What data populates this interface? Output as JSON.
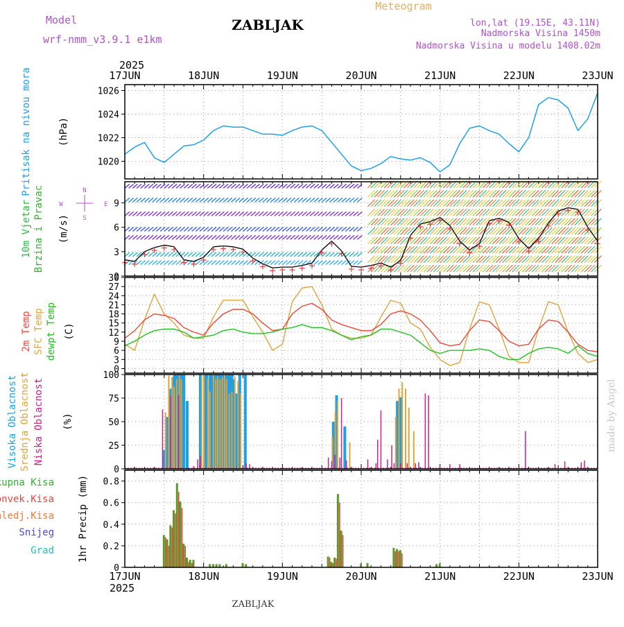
{
  "header": {
    "model_label": "Model",
    "model_name": "wrf-nmm_v3.9.1  e1km",
    "title": "ZABLJAK",
    "meteogram": "Meteogram",
    "lonlat": "lon,lat (19.15E, 43.11N)",
    "elevation": "Nadmorska Visina 1450m",
    "model_elevation": "Nadmorska Visina u modelu 1408.02m",
    "year_top": "2025",
    "year_bottom": "2025",
    "footer_station": "ZABLJAK",
    "credit": "made by Angel"
  },
  "colors": {
    "pressure": "#1ea0e6",
    "temp2m": "#e8473a",
    "sfc_temp": "#e0a33a",
    "dewpoint": "#20c020",
    "high_cloud": "#1ea0e6",
    "mid_cloud": "#e0a33a",
    "low_cloud": "#c8208c",
    "total_precip": "#30b030",
    "conv_precip": "#e8473a",
    "frozen_precip": "#f07830",
    "snow": "#4848e0",
    "hail": "#20c0c0",
    "wind_label": "#20c040",
    "wind_label2": "#30b030",
    "compass": "#b050d0"
  },
  "chart_data": [
    {
      "type": "line",
      "panel": "pressure",
      "ylabel_left": "Pritisak na nivou mora",
      "ylabel_unit": "(hPa)",
      "ylim": [
        1018.5,
        1026.5
      ],
      "yticks": [
        1020,
        1022,
        1024,
        1026
      ],
      "x_days": [
        "17JUN",
        "18JUN",
        "19JUN",
        "20JUN",
        "21JUN",
        "22JUN",
        "23JUN"
      ],
      "x_hours": [
        0,
        3,
        6,
        9,
        12,
        15,
        18,
        21,
        24,
        27,
        30,
        33,
        36,
        39,
        42,
        45,
        48,
        51,
        54,
        57,
        60,
        63,
        66,
        69,
        72,
        75,
        78,
        81,
        84,
        87,
        90,
        93,
        96,
        99,
        102,
        105,
        108,
        111,
        114,
        117,
        120,
        123,
        126,
        129,
        132,
        135,
        138,
        141,
        144
      ],
      "series": [
        {
          "values": [
            1020.6,
            1021.2,
            1021.6,
            1020.3,
            1019.9,
            1020.6,
            1021.3,
            1021.4,
            1021.8,
            1022.6,
            1023.0,
            1022.9,
            1022.9,
            1022.6,
            1022.3,
            1022.3,
            1022.2,
            1022.6,
            1022.9,
            1023.0,
            1022.6,
            1021.6,
            1020.6,
            1019.6,
            1019.2,
            1019.4,
            1019.8,
            1020.4,
            1020.2,
            1020.1,
            1020.3,
            1019.9,
            1019.1,
            1019.7,
            1021.5,
            1022.8,
            1023.0,
            1022.6,
            1022.3,
            1021.5,
            1020.8,
            1022.0,
            1024.8,
            1025.4,
            1025.2,
            1024.5,
            1022.6,
            1023.6,
            1025.8
          ]
        }
      ]
    },
    {
      "type": "line",
      "panel": "wind",
      "ylabel_left": [
        "10m Vjetar",
        "Brzina i Pravac"
      ],
      "ylabel_unit": "(m/s)",
      "compass": {
        "n": "N",
        "s": "S",
        "e": "E",
        "w": "W"
      },
      "ylim": [
        0,
        11.6
      ],
      "yticks": [
        0,
        3,
        6,
        9
      ],
      "x_hours": [
        0,
        3,
        6,
        9,
        12,
        15,
        18,
        21,
        24,
        27,
        30,
        33,
        36,
        39,
        42,
        45,
        48,
        51,
        54,
        57,
        60,
        63,
        66,
        69,
        72,
        75,
        78,
        81,
        84,
        87,
        90,
        93,
        96,
        99,
        102,
        105,
        108,
        111,
        114,
        117,
        120,
        123,
        126,
        129,
        132,
        135,
        138,
        141,
        144
      ],
      "series": [
        {
          "name": "",
          "values": [
            2.0,
            1.8,
            3.0,
            3.5,
            3.8,
            3.6,
            2.0,
            1.8,
            2.3,
            3.6,
            3.7,
            3.6,
            3.3,
            2.2,
            1.5,
            1.0,
            1.1,
            1.1,
            1.3,
            1.6,
            3.2,
            4.3,
            3.1,
            1.2,
            1.1,
            1.3,
            1.6,
            1.1,
            1.9,
            5.0,
            6.4,
            6.7,
            7.2,
            6.2,
            4.3,
            3.2,
            4.0,
            6.8,
            7.1,
            6.6,
            4.6,
            3.4,
            4.6,
            6.5,
            8.0,
            8.4,
            8.2,
            6.0,
            4.3
          ]
        }
      ]
    },
    {
      "type": "line",
      "panel": "temperature",
      "ylabel_left": [
        "2m Temp",
        "SFC Temp",
        "dewpt Temp"
      ],
      "ylabel_unit": "(C)",
      "ylim": [
        -1.5,
        30
      ],
      "yticks": [
        0,
        3,
        6,
        9,
        12,
        15,
        18,
        21,
        24,
        27,
        30
      ],
      "x_hours": [
        0,
        3,
        6,
        9,
        12,
        15,
        18,
        21,
        24,
        27,
        30,
        33,
        36,
        39,
        42,
        45,
        48,
        51,
        54,
        57,
        60,
        63,
        66,
        69,
        72,
        75,
        78,
        81,
        84,
        87,
        90,
        93,
        96,
        99,
        102,
        105,
        108,
        111,
        114,
        117,
        120,
        123,
        126,
        129,
        132,
        135,
        138,
        141,
        144
      ],
      "series": [
        {
          "name": "2m Temp",
          "values": [
            10,
            12.5,
            16,
            18,
            17.5,
            16.5,
            13.5,
            12,
            11,
            15,
            18,
            19.5,
            19.5,
            18,
            15,
            12.5,
            13,
            18,
            20.5,
            21.5,
            19.5,
            16,
            14.5,
            13.5,
            12.5,
            12.5,
            14.5,
            18,
            19,
            18,
            16,
            12.5,
            8.5,
            7.5,
            8,
            12.5,
            16,
            15.5,
            12.5,
            9,
            7.5,
            8,
            13,
            16,
            15.5,
            12,
            8,
            6,
            5.5
          ]
        },
        {
          "name": "SFC Temp",
          "values": [
            8,
            6,
            16,
            24.5,
            18,
            15,
            11,
            10,
            10,
            17,
            22.5,
            22.5,
            22.5,
            17,
            12,
            6,
            8,
            22,
            26.5,
            27,
            21,
            13,
            11,
            10,
            10,
            11,
            17,
            22.5,
            21.5,
            15,
            13,
            7,
            3,
            1,
            2,
            13,
            22,
            21,
            13,
            4,
            2,
            2,
            13,
            22,
            21,
            12,
            5,
            2,
            3
          ]
        },
        {
          "name": "dewpt Temp",
          "values": [
            7.5,
            9,
            11,
            12.5,
            13,
            13,
            12,
            10,
            10.5,
            11,
            12.5,
            13,
            12,
            11.5,
            11.5,
            12,
            13,
            13.5,
            14.5,
            13.5,
            13.5,
            12.5,
            11,
            9.5,
            10.5,
            11,
            13,
            13,
            12,
            11,
            8.5,
            6,
            5,
            6,
            6,
            6,
            6.5,
            6,
            4,
            3,
            3,
            5,
            6.5,
            7,
            6.5,
            5,
            7.5,
            5,
            4
          ]
        }
      ]
    },
    {
      "type": "bar",
      "panel": "clouds",
      "ylabel_left": [
        "Visoka Oblacnost",
        "Srednja Oblacnost",
        "Niska Oblacnost"
      ],
      "ylabel_unit": "(%)",
      "ylim": [
        0,
        100
      ],
      "yticks": [
        0,
        25,
        50,
        75,
        100
      ],
      "series": [
        {
          "name": "Visoka Oblacnost",
          "bars": [
            [
              12,
              20
            ],
            [
              13,
              55
            ],
            [
              14,
              85
            ],
            [
              15,
              98
            ],
            [
              15.6,
              100
            ],
            [
              16.2,
              100
            ],
            [
              16.8,
              100
            ],
            [
              17.4,
              100
            ],
            [
              18,
              100
            ],
            [
              19,
              72
            ],
            [
              23,
              100
            ],
            [
              24.3,
              100
            ],
            [
              25,
              100
            ],
            [
              26,
              100
            ],
            [
              26.7,
              100
            ],
            [
              27.4,
              100
            ],
            [
              28,
              100
            ],
            [
              28.7,
              100
            ],
            [
              29.4,
              100
            ],
            [
              30,
              100
            ],
            [
              30.7,
              100
            ],
            [
              31.4,
              100
            ],
            [
              32,
              100
            ],
            [
              32.6,
              100
            ],
            [
              33.2,
              95
            ],
            [
              34,
              80
            ],
            [
              35,
              100
            ],
            [
              36.7,
              100
            ],
            [
              63.5,
              50
            ],
            [
              64.5,
              78
            ],
            [
              67,
              45
            ],
            [
              83,
              72
            ],
            [
              84,
              76
            ]
          ]
        },
        {
          "name": "Srednja Oblacnost",
          "bars": [
            [
              12.4,
              60
            ],
            [
              13.4,
              99
            ],
            [
              14.4,
              97
            ],
            [
              15,
              87
            ],
            [
              15.8,
              95
            ],
            [
              16.6,
              99
            ],
            [
              17.2,
              95
            ],
            [
              23.4,
              98
            ],
            [
              24.1,
              100
            ],
            [
              25.3,
              96
            ],
            [
              25.9,
              82
            ],
            [
              27,
              100
            ],
            [
              27.7,
              95
            ],
            [
              28.3,
              98
            ],
            [
              29,
              95
            ],
            [
              29.7,
              97
            ],
            [
              30.4,
              100
            ],
            [
              31,
              95
            ],
            [
              31.8,
              80
            ],
            [
              32.6,
              82
            ],
            [
              33.5,
              98
            ],
            [
              34.5,
              93
            ],
            [
              35.3,
              80
            ],
            [
              63.2,
              34
            ],
            [
              64.1,
              60
            ],
            [
              64.8,
              72
            ],
            [
              68.5,
              28
            ],
            [
              82.5,
              55
            ],
            [
              83.5,
              85
            ],
            [
              84.5,
              92
            ],
            [
              85.5,
              85
            ],
            [
              86.5,
              65
            ],
            [
              88,
              40
            ]
          ]
        },
        {
          "name": "Niska Oblacnost",
          "bars": [
            [
              11.5,
              63
            ],
            [
              14,
              77
            ],
            [
              16.4,
              78
            ],
            [
              21,
              3
            ],
            [
              22.2,
              10
            ],
            [
              22.8,
              4
            ],
            [
              23,
              14
            ],
            [
              37,
              6
            ],
            [
              38,
              5
            ],
            [
              62,
              12
            ],
            [
              63,
              8
            ],
            [
              64,
              15
            ],
            [
              65.5,
              12
            ],
            [
              66,
              75
            ],
            [
              67.5,
              9
            ],
            [
              74,
              10
            ],
            [
              76.5,
              6
            ],
            [
              77,
              31
            ],
            [
              78,
              62
            ],
            [
              80,
              10
            ],
            [
              81.3,
              25
            ],
            [
              82,
              6
            ],
            [
              84,
              6
            ],
            [
              86,
              6
            ],
            [
              88.5,
              6
            ],
            [
              89.5,
              7
            ],
            [
              91.5,
              80
            ],
            [
              92.5,
              78
            ],
            [
              99,
              5
            ],
            [
              102,
              5
            ],
            [
              122,
              40
            ],
            [
              131,
              5
            ],
            [
              134,
              8
            ],
            [
              139,
              7
            ],
            [
              140,
              9
            ]
          ]
        }
      ]
    },
    {
      "type": "bar",
      "panel": "precip",
      "ylabel_left": [
        "Ukupna Kisa",
        "Konvek.Kisa",
        "Zaledj.Kisa",
        "Snijeg",
        "Grad"
      ],
      "ylabel_unit": "1hr Precip (mm)",
      "ylim": [
        0,
        0.9
      ],
      "yticks": [
        0,
        0.2,
        0.4,
        0.6,
        0.8
      ],
      "series": [
        {
          "name": "Ukupna Kisa",
          "bars": [
            [
              12,
              0.3
            ],
            [
              13,
              0.26
            ],
            [
              14,
              0.39
            ],
            [
              15,
              0.53
            ],
            [
              16,
              0.78
            ],
            [
              17,
              0.61
            ],
            [
              18,
              0.22
            ],
            [
              19,
              0.09
            ],
            [
              20,
              0.07
            ],
            [
              21,
              0.07
            ],
            [
              26,
              0.03
            ],
            [
              27,
              0.03
            ],
            [
              28,
              0.03
            ],
            [
              29,
              0.03
            ],
            [
              31,
              0.03
            ],
            [
              36,
              0.04
            ],
            [
              37,
              0.03
            ],
            [
              62,
              0.1
            ],
            [
              63,
              0.05
            ],
            [
              64,
              0.09
            ],
            [
              65,
              0.68
            ],
            [
              66,
              0.34
            ],
            [
              72,
              0.03
            ],
            [
              74,
              0.04
            ],
            [
              82,
              0.18
            ],
            [
              83,
              0.17
            ],
            [
              84,
              0.16
            ],
            [
              95,
              0.03
            ],
            [
              96,
              0.03
            ]
          ]
        },
        {
          "name": "Konvek.Kisa",
          "bars": [
            [
              12,
              0.28
            ],
            [
              13,
              0.2
            ],
            [
              14,
              0.37
            ],
            [
              15,
              0.5
            ],
            [
              16,
              0.7
            ],
            [
              17,
              0.55
            ],
            [
              18,
              0.2
            ],
            [
              19,
              0.05
            ],
            [
              20,
              0.04
            ],
            [
              62,
              0.09
            ],
            [
              63,
              0.04
            ],
            [
              64,
              0.08
            ],
            [
              65,
              0.6
            ],
            [
              66,
              0.3
            ],
            [
              82,
              0.15
            ],
            [
              83,
              0.15
            ],
            [
              84,
              0.13
            ]
          ]
        }
      ]
    }
  ]
}
